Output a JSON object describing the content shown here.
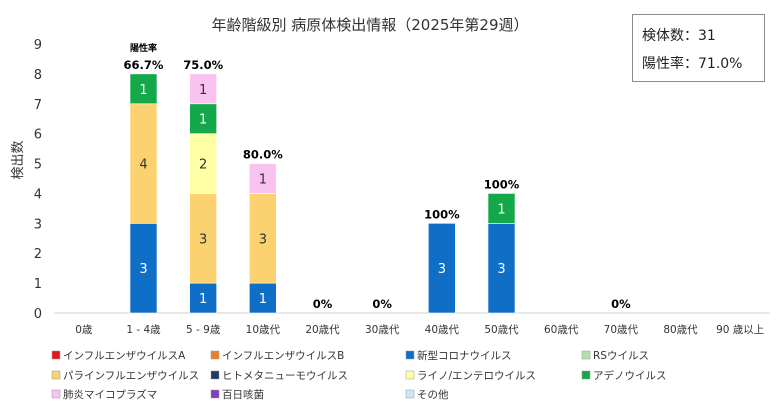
{
  "chart_data": {
    "type": "bar",
    "stacked": true,
    "title": "年齢階級別 病原体検出情報（2025年第29週）",
    "ylabel": "検出数",
    "xlabel": "",
    "ylim": [
      0,
      9
    ],
    "yticks": [
      "0",
      "1",
      "2",
      "3",
      "4",
      "5",
      "6",
      "7",
      "8",
      "9"
    ],
    "grid": false,
    "legend_position": "bottom",
    "categories": [
      "0歳",
      "1 - 4歳",
      "5 - 9歳",
      "10歳代",
      "20歳代",
      "30歳代",
      "40歳代",
      "50歳代",
      "60歳代",
      "70歳代",
      "80歳代",
      "90 歳以上"
    ],
    "positivity_header": "陽性率",
    "positivity_labels": [
      "",
      "66.7%",
      "75.0%",
      "80.0%",
      "0%",
      "0%",
      "100%",
      "100%",
      "",
      "0%",
      "",
      ""
    ],
    "positivity_totals": [
      0,
      8,
      8,
      5,
      0,
      0,
      3,
      4,
      0,
      0,
      0,
      0
    ],
    "series": [
      {
        "name": "インフルエンザウイルスA",
        "color": "#e31a1c",
        "values": [
          0,
          0,
          0,
          0,
          0,
          0,
          0,
          0,
          0,
          0,
          0,
          0
        ]
      },
      {
        "name": "インフルエンザウイルスB",
        "color": "#ed7d31",
        "values": [
          0,
          0,
          0,
          0,
          0,
          0,
          0,
          0,
          0,
          0,
          0,
          0
        ]
      },
      {
        "name": "新型コロナウイルス",
        "color": "#0f6fc6",
        "values": [
          0,
          3,
          1,
          1,
          0,
          0,
          3,
          3,
          0,
          0,
          0,
          0
        ]
      },
      {
        "name": "RSウイルス",
        "color": "#b4e0a8",
        "values": [
          0,
          0,
          0,
          0,
          0,
          0,
          0,
          0,
          0,
          0,
          0,
          0
        ]
      },
      {
        "name": "パラインフルエンザウイルス",
        "color": "#fbd26f",
        "values": [
          0,
          4,
          3,
          3,
          0,
          0,
          0,
          0,
          0,
          0,
          0,
          0
        ]
      },
      {
        "name": "ヒトメタニューモウイルス",
        "color": "#203864",
        "values": [
          0,
          0,
          0,
          0,
          0,
          0,
          0,
          0,
          0,
          0,
          0,
          0
        ]
      },
      {
        "name": "ライノ/エンテロウイルス",
        "color": "#ffffa6",
        "values": [
          0,
          0,
          2,
          0,
          0,
          0,
          0,
          0,
          0,
          0,
          0,
          0
        ]
      },
      {
        "name": "アデノウイルス",
        "color": "#15a84a",
        "values": [
          0,
          1,
          1,
          0,
          0,
          0,
          0,
          1,
          0,
          0,
          0,
          0
        ]
      },
      {
        "name": "肺炎マイコプラズマ",
        "color": "#f8c3f0",
        "values": [
          0,
          0,
          1,
          1,
          0,
          0,
          0,
          0,
          0,
          0,
          0,
          0
        ]
      },
      {
        "name": "百日咳菌",
        "color": "#7f3fbf",
        "values": [
          0,
          0,
          0,
          0,
          0,
          0,
          0,
          0,
          0,
          0,
          0,
          0
        ]
      },
      {
        "name": "その他",
        "color": "#cfe6f8",
        "values": [
          0,
          0,
          0,
          0,
          0,
          0,
          0,
          0,
          0,
          0,
          0,
          0
        ]
      }
    ]
  },
  "stats": {
    "total": "検体数：31",
    "positivity": "陽性率：71.0%"
  }
}
